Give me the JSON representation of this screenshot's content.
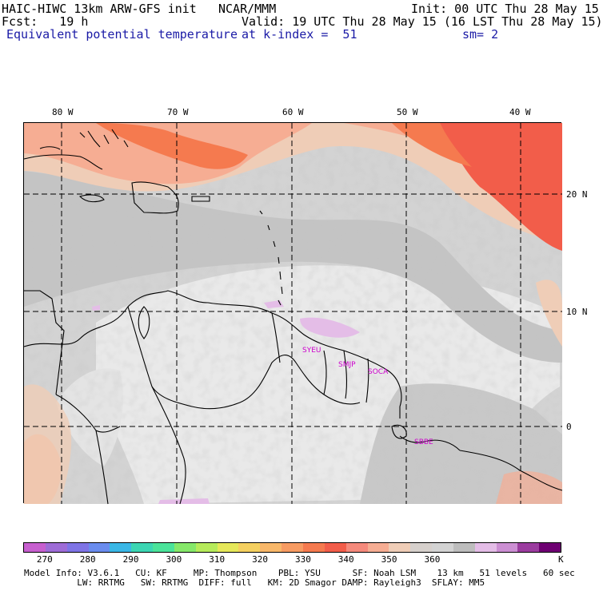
{
  "header": {
    "title_left": "HAIC-HIWC 13km ARW-GFS init",
    "title_center": "NCAR/MMM",
    "init": "Init: 00 UTC Thu 28 May 15",
    "fcst": "Fcst:   19 h",
    "valid": "Valid: 19 UTC Thu 28 May 15 (16 LST Thu 28 May 15)",
    "field": "Equivalent potential temperature",
    "level": "at k-index =  51",
    "smooth": "sm= 2"
  },
  "axes": {
    "lon_labels": [
      "80 W",
      "70 W",
      "60 W",
      "50 W",
      "40 W"
    ],
    "lat_labels": [
      "20 N",
      "10 N",
      "0"
    ]
  },
  "stations": [
    "SYEU",
    "SMJP",
    "SOCA",
    "SBBE"
  ],
  "colorbar": {
    "colors": [
      "#c75fcf",
      "#9e6cd7",
      "#7f74e6",
      "#6a8cee",
      "#3ab7e6",
      "#3cd6b3",
      "#4be39a",
      "#86e86a",
      "#b6eb5b",
      "#e6e85a",
      "#f5d060",
      "#f9b86a",
      "#f79b62",
      "#f57a4f",
      "#f25d4a",
      "#f58a7c",
      "#f6ad93",
      "#efcdb7",
      "#d6d0cc",
      "#d3d3d3",
      "#bdbdbd",
      "#e4bde7",
      "#cc8fd3",
      "#9b3c9f",
      "#6e0072"
    ],
    "tick_labels": [
      "270",
      "280",
      "290",
      "300",
      "310",
      "320",
      "330",
      "340",
      "350",
      "360",
      "K"
    ]
  },
  "footer": {
    "line1": "Model Info: V3.6.1   CU: KF     MP: Thompson    PBL: YSU      SF: Noah LSM    13 km   51 levels   60 sec",
    "line2": "          LW: RRTMG   SW: RRTMG  DIFF: full   KM: 2D Smagor DAMP: Rayleigh3  SFLAY: MM5"
  }
}
